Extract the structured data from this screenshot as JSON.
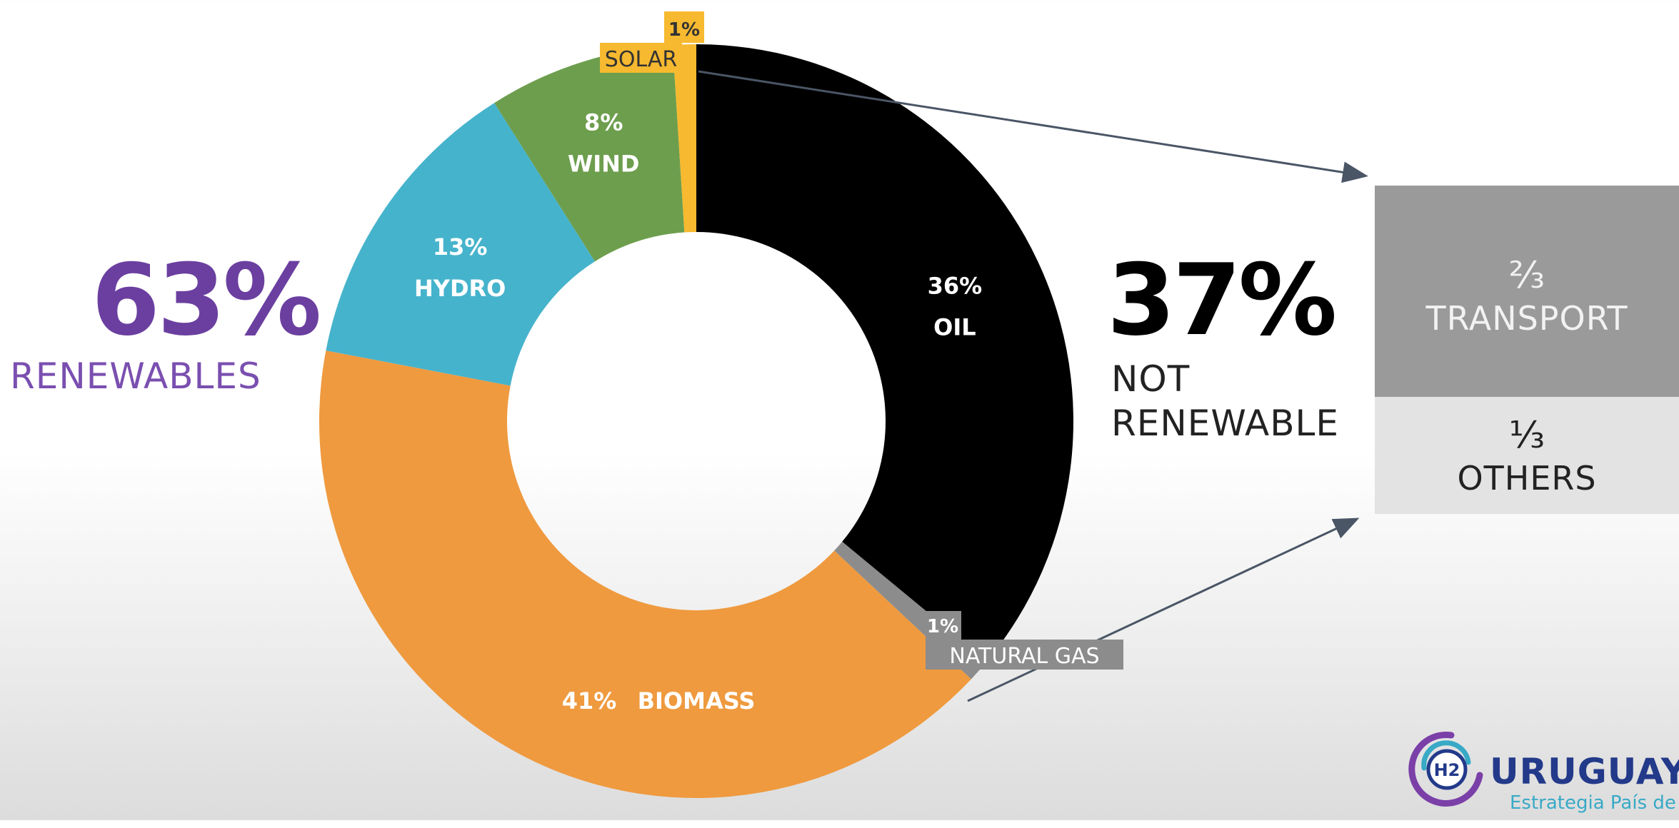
{
  "chart_data": {
    "type": "pie",
    "subtype": "donut",
    "title": "",
    "slices": [
      {
        "name": "OIL",
        "value": 36,
        "label": "36%",
        "color": "#000000",
        "label_color": "#ffffff"
      },
      {
        "name": "NATURAL GAS",
        "value": 1,
        "label": "1%",
        "color": "#8c8c8c",
        "label_color": "#ffffff"
      },
      {
        "name": "BIOMASS",
        "value": 41,
        "label": "41%",
        "color": "#ef9a3f",
        "label_color": "#ffffff"
      },
      {
        "name": "HYDRO",
        "value": 13,
        "label": "13%",
        "color": "#46b3cc",
        "label_color": "#ffffff"
      },
      {
        "name": "WIND",
        "value": 8,
        "label": "8%",
        "color": "#6d9e4d",
        "label_color": "#ffffff"
      },
      {
        "name": "SOLAR",
        "value": 1,
        "label": "1%",
        "color": "#f6b92f",
        "label_color": "#333333"
      }
    ]
  },
  "renewables": {
    "pct": "63%",
    "label": "RENEWABLES",
    "color": "#6b3fa0"
  },
  "not_renewable": {
    "pct": "37%",
    "label": "NOT RENEWABLE"
  },
  "breakdown": [
    {
      "fraction": "⅔",
      "label": "TRANSPORT",
      "color": "#9a9a9a"
    },
    {
      "fraction": "⅓",
      "label": "OTHERS",
      "color": "#e3e3e3"
    }
  ],
  "logo": {
    "text": "URUGUAY",
    "badge": "H2",
    "tagline": "Estrategia País de"
  }
}
